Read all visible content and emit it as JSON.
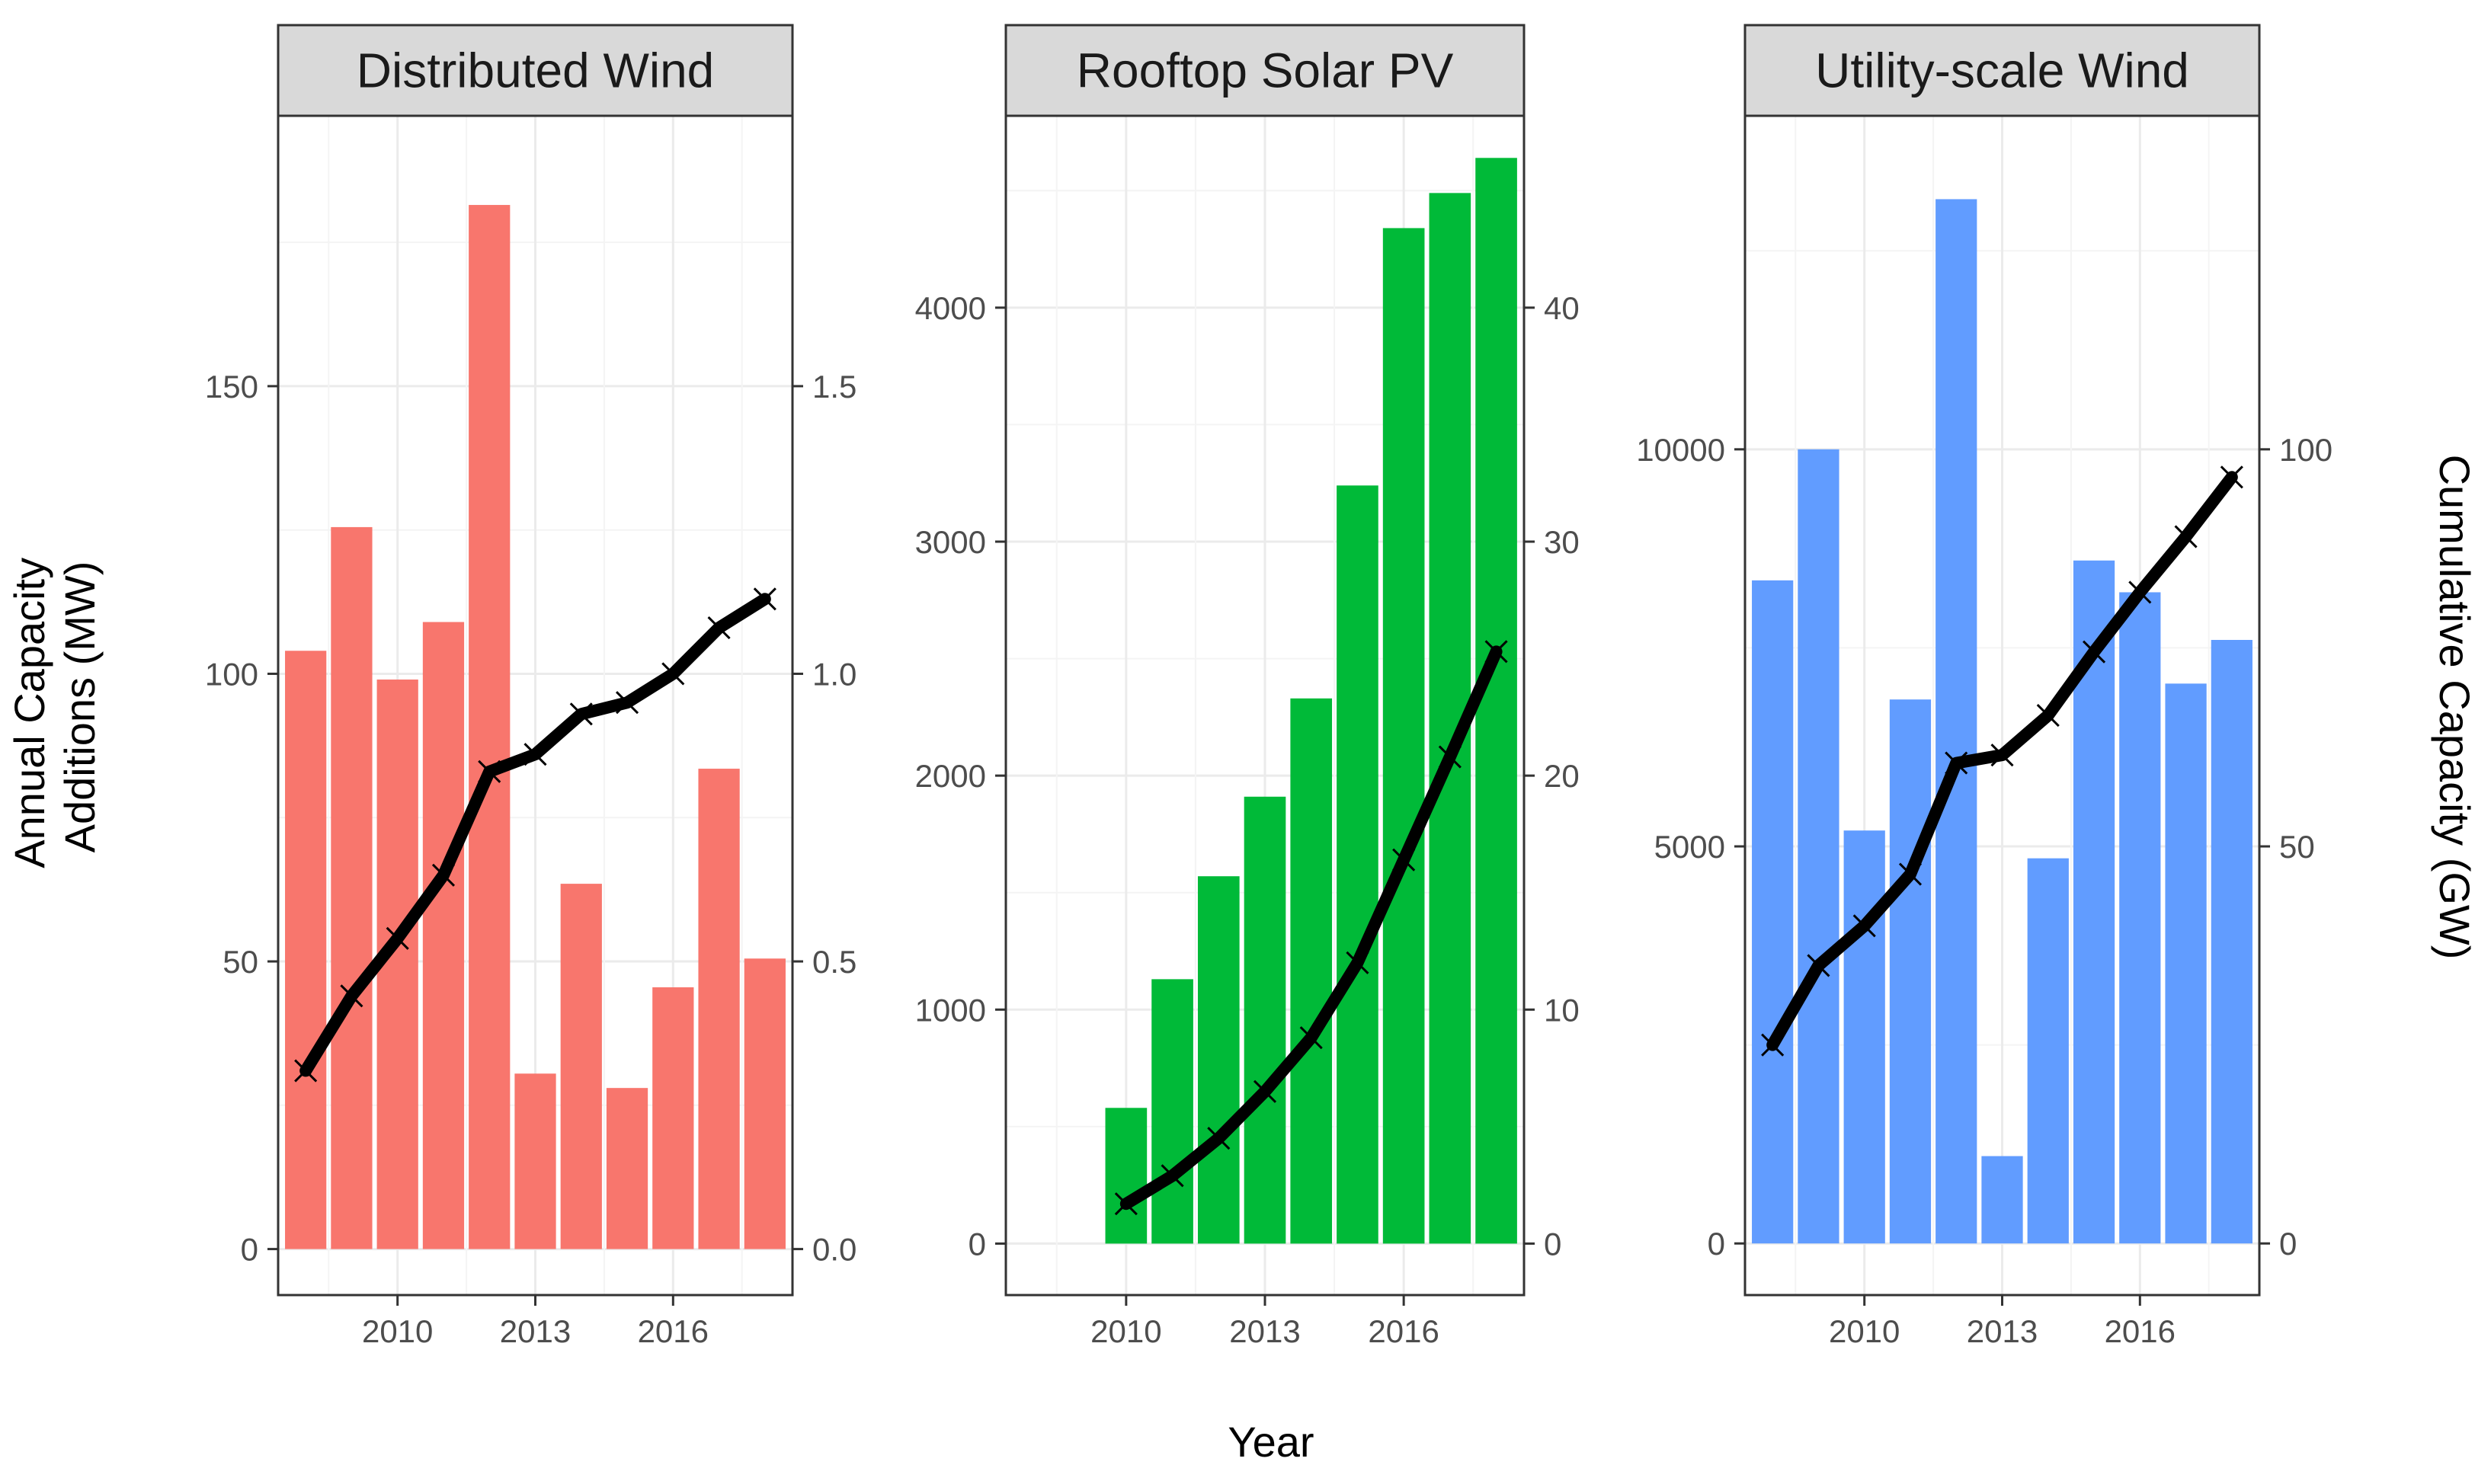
{
  "chart_data": {
    "type": "bar",
    "xlabel": "Year",
    "ylabel_left": [
      "Annual Capacity",
      "Additions (MW)"
    ],
    "ylabel_right": "Cumulative Capacity (GW)",
    "grid": true,
    "legend": "none",
    "x_ticks": [
      2010,
      2013,
      2016
    ],
    "x_range": [
      2007.4,
      2018.6
    ],
    "line_color": "#000000",
    "panels": [
      {
        "title": "Distributed Wind",
        "bar_color": "#F8766D",
        "years": [
          2008,
          2009,
          2010,
          2011,
          2012,
          2013,
          2014,
          2015,
          2016,
          2017,
          2018
        ],
        "annual_additions_mw": [
          104,
          125.5,
          99,
          109,
          181.5,
          30.5,
          63.5,
          28,
          45.5,
          83.5,
          50.5
        ],
        "cumulative_gw": [
          0.31,
          0.44,
          0.54,
          0.65,
          0.83,
          0.86,
          0.93,
          0.95,
          1.0,
          1.08,
          1.13
        ],
        "ylim_left": [
          -8,
          197
        ],
        "ylim_right": [
          -0.08,
          1.97
        ],
        "left_ticks": [
          0,
          50,
          100,
          150
        ],
        "right_ticks": [
          "0.0",
          "0.5",
          "1.0",
          "1.5"
        ],
        "right_tick_values": [
          0,
          0.5,
          1.0,
          1.5
        ]
      },
      {
        "title": "Rooftop Solar PV",
        "bar_color": "#00BA38",
        "years": [
          2010,
          2011,
          2012,
          2013,
          2014,
          2015,
          2016,
          2017,
          2018
        ],
        "annual_additions_mw": [
          580,
          1130,
          1570,
          1910,
          2330,
          3240,
          4340,
          4490,
          4640
        ],
        "cumulative_gw": [
          1.7,
          2.9,
          4.5,
          6.5,
          8.8,
          12.0,
          16.4,
          20.8,
          25.3
        ],
        "ylim_left": [
          -220,
          4820
        ],
        "ylim_right": [
          -2.2,
          48.2
        ],
        "left_ticks": [
          0,
          1000,
          2000,
          3000,
          4000
        ],
        "right_ticks": [
          "0",
          "10",
          "20",
          "30",
          "40"
        ],
        "right_tick_values": [
          0,
          10,
          20,
          30,
          40
        ]
      },
      {
        "title": "Utility-scale Wind",
        "bar_color": "#619CFF",
        "years": [
          2008,
          2009,
          2010,
          2011,
          2012,
          2013,
          2014,
          2015,
          2016,
          2017,
          2018
        ],
        "annual_additions_mw": [
          8350,
          10000,
          5200,
          6850,
          13150,
          1100,
          4850,
          8600,
          8200,
          7050,
          7600
        ],
        "cumulative_gw": [
          25,
          35,
          40,
          46.5,
          60.5,
          61.5,
          66.5,
          74.5,
          82,
          89,
          96.5
        ],
        "ylim_left": [
          -650,
          14200
        ],
        "ylim_right": [
          -6.5,
          142
        ],
        "left_ticks": [
          0,
          5000,
          10000
        ],
        "right_ticks": [
          "0",
          "50",
          "100"
        ],
        "right_tick_values": [
          0,
          50,
          100
        ]
      }
    ]
  }
}
